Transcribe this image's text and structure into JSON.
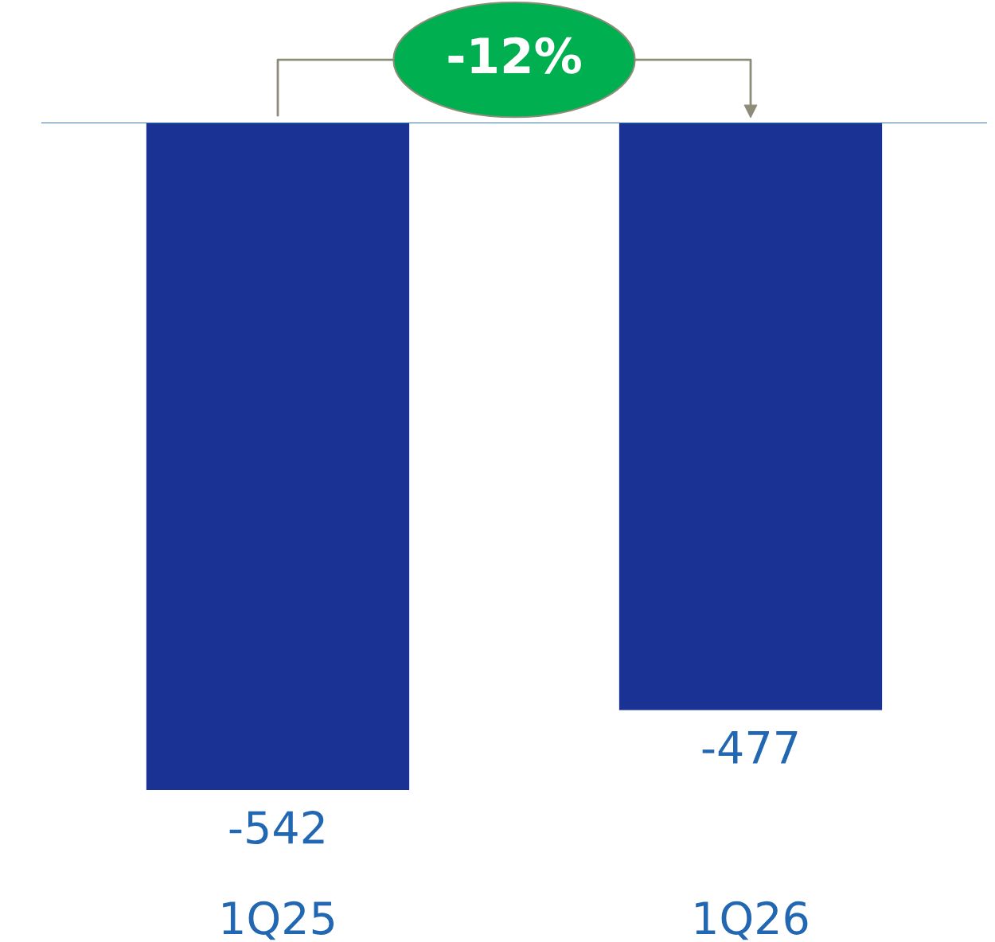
{
  "chart_data": {
    "type": "bar",
    "categories": [
      "1Q25",
      "1Q26"
    ],
    "series": [
      {
        "color": "#1a3293",
        "values": [
          -542,
          -477
        ]
      }
    ],
    "data_labels": true,
    "annotations": [
      "-12%"
    ],
    "grid": false,
    "legend": false
  }
}
